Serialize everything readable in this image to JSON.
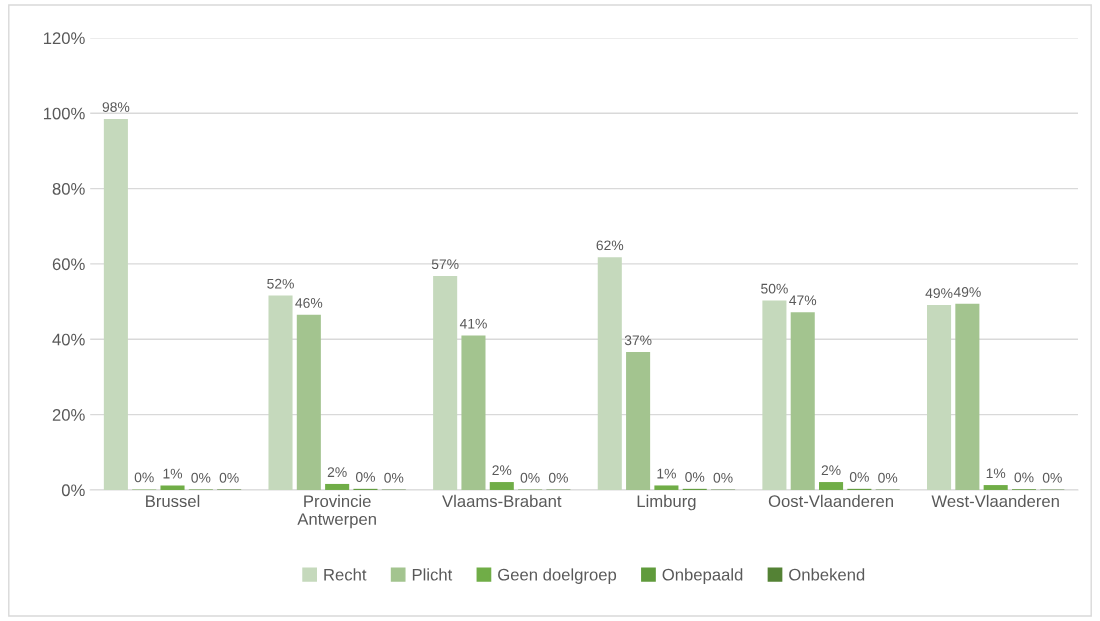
{
  "chart_data": {
    "type": "bar",
    "categories": [
      "Brussel",
      "Provincie\nAntwerpen",
      "Vlaams-Brabant",
      "Limburg",
      "Oost-Vlaanderen",
      "West-Vlaanderen"
    ],
    "series": [
      {
        "name": "Recht",
        "color": "#c5d9bc",
        "values": [
          98.5,
          51.6,
          56.8,
          61.8,
          50.3,
          49.1
        ],
        "value_labels": [
          "98%",
          "52%",
          "57%",
          "62%",
          "50%",
          "49%"
        ]
      },
      {
        "name": "Plicht",
        "color": "#a3c48f",
        "values": [
          0.2,
          46.5,
          41.0,
          36.6,
          47.2,
          49.4
        ],
        "value_labels": [
          "0%",
          "46%",
          "41%",
          "37%",
          "47%",
          "49%"
        ]
      },
      {
        "name": "Geen doelgroep",
        "color": "#70ad47",
        "values": [
          1.2,
          1.6,
          2.1,
          1.2,
          2.1,
          1.3
        ],
        "value_labels": [
          "1%",
          "2%",
          "2%",
          "1%",
          "2%",
          "1%"
        ]
      },
      {
        "name": "Onbepaald",
        "color": "#609b3c",
        "values": [
          0.1,
          0.3,
          0.1,
          0.3,
          0.3,
          0.2
        ],
        "value_labels": [
          "0%",
          "0%",
          "0%",
          "0%",
          "0%",
          "0%"
        ]
      },
      {
        "name": "Onbekend",
        "color": "#548235",
        "values": [
          0.1,
          0.1,
          0.1,
          0.1,
          0.1,
          0.1
        ],
        "value_labels": [
          "0%",
          "0%",
          "0%",
          "0%",
          "0%",
          "0%"
        ]
      }
    ],
    "ylim": [
      0,
      120
    ],
    "yticks": [
      {
        "value": 0,
        "label": "0%"
      },
      {
        "value": 20,
        "label": "20%"
      },
      {
        "value": 40,
        "label": "40%"
      },
      {
        "value": 60,
        "label": "60%"
      },
      {
        "value": 80,
        "label": "80%"
      },
      {
        "value": 100,
        "label": "100%"
      },
      {
        "value": 120,
        "label": "120%"
      }
    ],
    "grid": "y",
    "legend": "bottom"
  }
}
